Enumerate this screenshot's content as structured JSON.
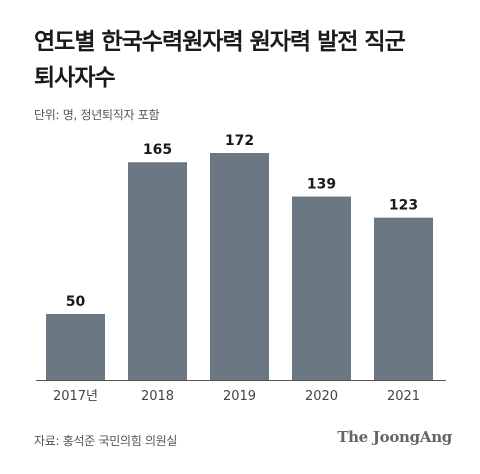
{
  "title": "연도별 한국수력원자력 원자력 발전 직군\n퇴사자수",
  "unit_note": "단위: 명, 정년퇴직자 포함",
  "source": "자료: 홍석준 국민의힘 의원실",
  "brand": "The JoongAng",
  "colors": {
    "bar": "#6b7782",
    "axis": "#555555",
    "label": "#1a1a1a",
    "tick": "#444444"
  },
  "chart_data": {
    "type": "bar",
    "categories": [
      "2017년",
      "2018",
      "2019",
      "2020",
      "2021"
    ],
    "values": [
      50,
      165,
      172,
      139,
      123
    ],
    "title": "연도별 한국수력원자력 원자력 발전 직군 퇴사자수",
    "xlabel": "",
    "ylabel": "",
    "ylim": [
      0,
      172
    ],
    "grid": false,
    "legend": "none"
  }
}
